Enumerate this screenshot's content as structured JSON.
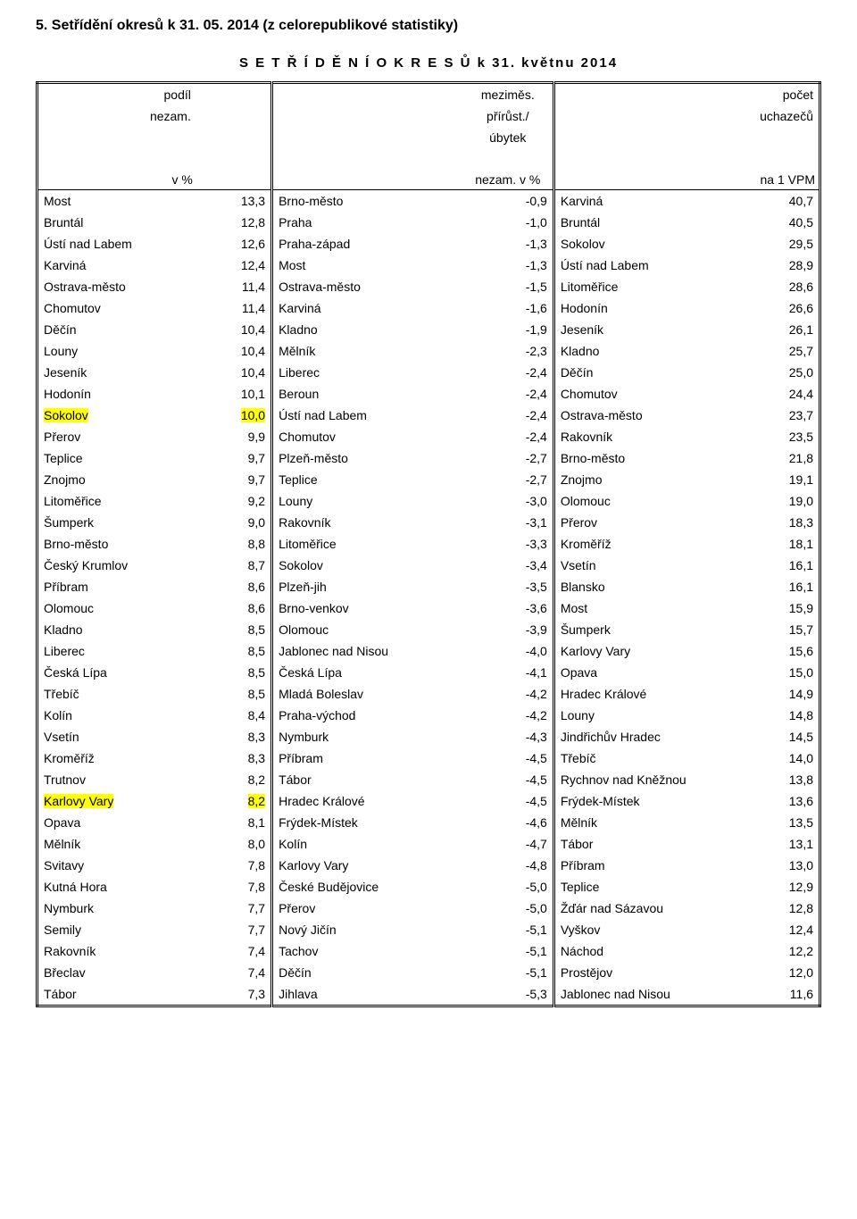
{
  "title": "5. Setřídění okresů k 31. 05. 2014 (z celorepublikové statistiky)",
  "subtitle": "S E T Ř Í D Ě N Í   O K R E S Ů   k  31. květnu 2014",
  "columns": [
    {
      "h1": "podíl",
      "h2": "nezam.",
      "h3": "v %",
      "note_col": "name",
      "note_align": "right"
    },
    {
      "h1": "meziměs.\npřírůst./\núbytek\nnezam. v %",
      "h2": "",
      "h3": "",
      "note_col": "val"
    },
    {
      "h1": "počet",
      "h2": "uchazečů",
      "h3": "na 1 VPM",
      "note_col": "val"
    }
  ],
  "rows": [
    {
      "c1n": "Most",
      "c1v": "13,3",
      "c2n": "Brno-město",
      "c2v": "-0,9",
      "c3n": "Karviná",
      "c3v": "40,7"
    },
    {
      "c1n": "Bruntál",
      "c1v": "12,8",
      "c2n": "Praha",
      "c2v": "-1,0",
      "c3n": "Bruntál",
      "c3v": "40,5"
    },
    {
      "c1n": "Ústí nad Labem",
      "c1v": "12,6",
      "c2n": "Praha-západ",
      "c2v": "-1,3",
      "c3n": "Sokolov",
      "c3v": "29,5"
    },
    {
      "c1n": "Karviná",
      "c1v": "12,4",
      "c2n": "Most",
      "c2v": "-1,3",
      "c3n": "Ústí nad Labem",
      "c3v": "28,9"
    },
    {
      "c1n": "Ostrava-město",
      "c1v": "11,4",
      "c2n": "Ostrava-město",
      "c2v": "-1,5",
      "c3n": "Litoměřice",
      "c3v": "28,6"
    },
    {
      "c1n": "Chomutov",
      "c1v": "11,4",
      "c2n": "Karviná",
      "c2v": "-1,6",
      "c3n": "Hodonín",
      "c3v": "26,6"
    },
    {
      "c1n": "Děčín",
      "c1v": "10,4",
      "c2n": "Kladno",
      "c2v": "-1,9",
      "c3n": "Jeseník",
      "c3v": "26,1"
    },
    {
      "c1n": "Louny",
      "c1v": "10,4",
      "c2n": "Mělník",
      "c2v": "-2,3",
      "c3n": "Kladno",
      "c3v": "25,7"
    },
    {
      "c1n": "Jeseník",
      "c1v": "10,4",
      "c2n": "Liberec",
      "c2v": "-2,4",
      "c3n": "Děčín",
      "c3v": "25,0"
    },
    {
      "c1n": "Hodonín",
      "c1v": "10,1",
      "c2n": "Beroun",
      "c2v": "-2,4",
      "c3n": "Chomutov",
      "c3v": "24,4"
    },
    {
      "c1n": "Sokolov",
      "c1v": "10,0",
      "c2n": "Ústí nad Labem",
      "c2v": "-2,4",
      "c3n": "Ostrava-město",
      "c3v": "23,7",
      "hl1": true
    },
    {
      "c1n": "Přerov",
      "c1v": "9,9",
      "c2n": "Chomutov",
      "c2v": "-2,4",
      "c3n": "Rakovník",
      "c3v": "23,5"
    },
    {
      "c1n": "Teplice",
      "c1v": "9,7",
      "c2n": "Plzeň-město",
      "c2v": "-2,7",
      "c3n": "Brno-město",
      "c3v": "21,8"
    },
    {
      "c1n": "Znojmo",
      "c1v": "9,7",
      "c2n": "Teplice",
      "c2v": "-2,7",
      "c3n": "Znojmo",
      "c3v": "19,1"
    },
    {
      "c1n": "Litoměřice",
      "c1v": "9,2",
      "c2n": "Louny",
      "c2v": "-3,0",
      "c3n": "Olomouc",
      "c3v": "19,0"
    },
    {
      "c1n": "Šumperk",
      "c1v": "9,0",
      "c2n": "Rakovník",
      "c2v": "-3,1",
      "c3n": "Přerov",
      "c3v": "18,3"
    },
    {
      "c1n": "Brno-město",
      "c1v": "8,8",
      "c2n": "Litoměřice",
      "c2v": "-3,3",
      "c3n": "Kroměříž",
      "c3v": "18,1"
    },
    {
      "c1n": "Český Krumlov",
      "c1v": "8,7",
      "c2n": "Sokolov",
      "c2v": "-3,4",
      "c3n": "Vsetín",
      "c3v": "16,1"
    },
    {
      "c1n": "Příbram",
      "c1v": "8,6",
      "c2n": "Plzeň-jih",
      "c2v": "-3,5",
      "c3n": "Blansko",
      "c3v": "16,1"
    },
    {
      "c1n": "Olomouc",
      "c1v": "8,6",
      "c2n": "Brno-venkov",
      "c2v": "-3,6",
      "c3n": "Most",
      "c3v": "15,9"
    },
    {
      "c1n": "Kladno",
      "c1v": "8,5",
      "c2n": "Olomouc",
      "c2v": "-3,9",
      "c3n": "Šumperk",
      "c3v": "15,7"
    },
    {
      "c1n": "Liberec",
      "c1v": "8,5",
      "c2n": "Jablonec nad Nisou",
      "c2v": "-4,0",
      "c3n": "Karlovy Vary",
      "c3v": "15,6"
    },
    {
      "c1n": "Česká Lípa",
      "c1v": "8,5",
      "c2n": "Česká Lípa",
      "c2v": "-4,1",
      "c3n": "Opava",
      "c3v": "15,0"
    },
    {
      "c1n": "Třebíč",
      "c1v": "8,5",
      "c2n": "Mladá Boleslav",
      "c2v": "-4,2",
      "c3n": "Hradec Králové",
      "c3v": "14,9"
    },
    {
      "c1n": "Kolín",
      "c1v": "8,4",
      "c2n": "Praha-východ",
      "c2v": "-4,2",
      "c3n": "Louny",
      "c3v": "14,8"
    },
    {
      "c1n": "Vsetín",
      "c1v": "8,3",
      "c2n": "Nymburk",
      "c2v": "-4,3",
      "c3n": "Jindřichův Hradec",
      "c3v": "14,5"
    },
    {
      "c1n": "Kroměříž",
      "c1v": "8,3",
      "c2n": "Příbram",
      "c2v": "-4,5",
      "c3n": "Třebíč",
      "c3v": "14,0"
    },
    {
      "c1n": "Trutnov",
      "c1v": "8,2",
      "c2n": "Tábor",
      "c2v": "-4,5",
      "c3n": "Rychnov nad Kněžnou",
      "c3v": "13,8"
    },
    {
      "c1n": "Karlovy Vary",
      "c1v": "8,2",
      "c2n": "Hradec Králové",
      "c2v": "-4,5",
      "c3n": "Frýdek-Místek",
      "c3v": "13,6",
      "hl1": true
    },
    {
      "c1n": "Opava",
      "c1v": "8,1",
      "c2n": "Frýdek-Místek",
      "c2v": "-4,6",
      "c3n": "Mělník",
      "c3v": "13,5"
    },
    {
      "c1n": "Mělník",
      "c1v": "8,0",
      "c2n": "Kolín",
      "c2v": "-4,7",
      "c3n": "Tábor",
      "c3v": "13,1"
    },
    {
      "c1n": "Svitavy",
      "c1v": "7,8",
      "c2n": "Karlovy Vary",
      "c2v": "-4,8",
      "c3n": "Příbram",
      "c3v": "13,0"
    },
    {
      "c1n": "Kutná Hora",
      "c1v": "7,8",
      "c2n": "České Budějovice",
      "c2v": "-5,0",
      "c3n": "Teplice",
      "c3v": "12,9"
    },
    {
      "c1n": "Nymburk",
      "c1v": "7,7",
      "c2n": "Přerov",
      "c2v": "-5,0",
      "c3n": "Žďár nad Sázavou",
      "c3v": "12,8"
    },
    {
      "c1n": "Semily",
      "c1v": "7,7",
      "c2n": "Nový Jičín",
      "c2v": "-5,1",
      "c3n": "Vyškov",
      "c3v": "12,4"
    },
    {
      "c1n": "Rakovník",
      "c1v": "7,4",
      "c2n": "Tachov",
      "c2v": "-5,1",
      "c3n": "Náchod",
      "c3v": "12,2"
    },
    {
      "c1n": "Břeclav",
      "c1v": "7,4",
      "c2n": "Děčín",
      "c2v": "-5,1",
      "c3n": "Prostějov",
      "c3v": "12,0"
    },
    {
      "c1n": "Tábor",
      "c1v": "7,3",
      "c2n": "Jihlava",
      "c2v": "-5,3",
      "c3n": "Jablonec nad Nisou",
      "c3v": "11,6"
    }
  ]
}
